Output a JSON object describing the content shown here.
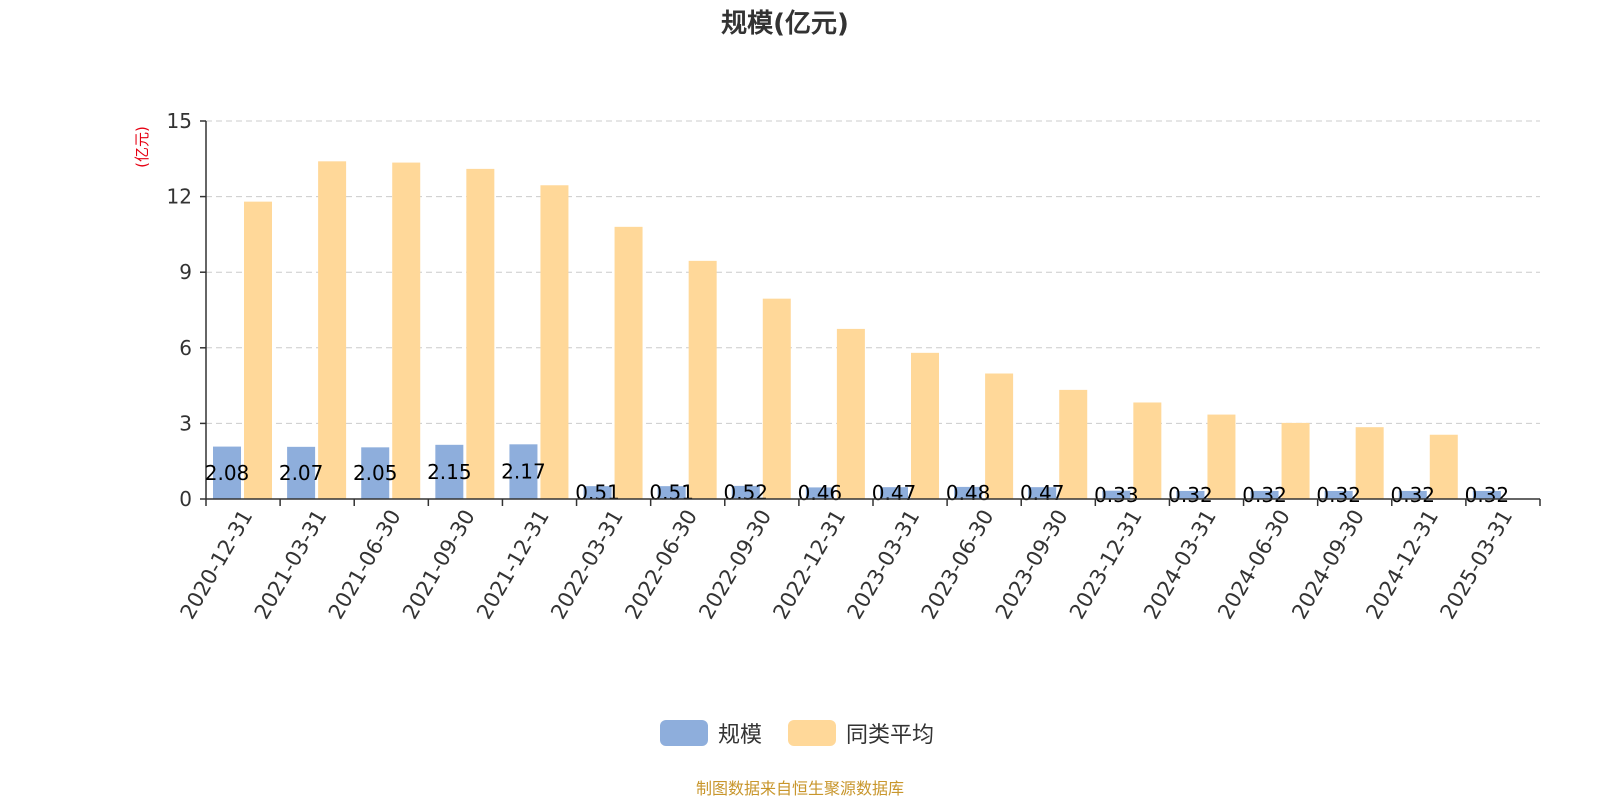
{
  "chart_data": {
    "type": "bar",
    "title": "规模(亿元)",
    "ylabel": "(亿元)",
    "ylim": [
      0,
      15
    ],
    "yticks": [
      0,
      3,
      6,
      9,
      12,
      15
    ],
    "grid": true,
    "legend_position": "bottom-center",
    "categories": [
      "2020-12-31",
      "2021-03-31",
      "2021-06-30",
      "2021-09-30",
      "2021-12-31",
      "2022-03-31",
      "2022-06-30",
      "2022-09-30",
      "2022-12-31",
      "2023-03-31",
      "2023-06-30",
      "2023-09-30",
      "2023-12-31",
      "2024-03-31",
      "2024-06-30",
      "2024-09-30",
      "2024-12-31",
      "2025-03-31"
    ],
    "series": [
      {
        "name": "规模",
        "color": "#8eaedc",
        "values": [
          2.08,
          2.07,
          2.05,
          2.15,
          2.17,
          0.51,
          0.51,
          0.52,
          0.46,
          0.47,
          0.48,
          0.47,
          0.33,
          0.32,
          0.32,
          0.32,
          0.32,
          0.32
        ],
        "labels": [
          "2.08",
          "2.07",
          "2.05",
          "2.15",
          "2.17",
          "0.51",
          "0.51",
          "0.52",
          "0.46",
          "0.47",
          "0.48",
          "0.47",
          "0.33",
          "0.32",
          "0.32",
          "0.32",
          "0.32",
          "0.32"
        ]
      },
      {
        "name": "同类平均",
        "color": "#ffd899",
        "values": [
          11.8,
          13.4,
          13.35,
          13.1,
          12.45,
          10.8,
          9.45,
          7.95,
          6.75,
          5.8,
          4.98,
          4.33,
          3.83,
          3.35,
          3.02,
          2.85,
          2.55,
          0
        ]
      }
    ],
    "source": "制图数据来自恒生聚源数据库"
  }
}
